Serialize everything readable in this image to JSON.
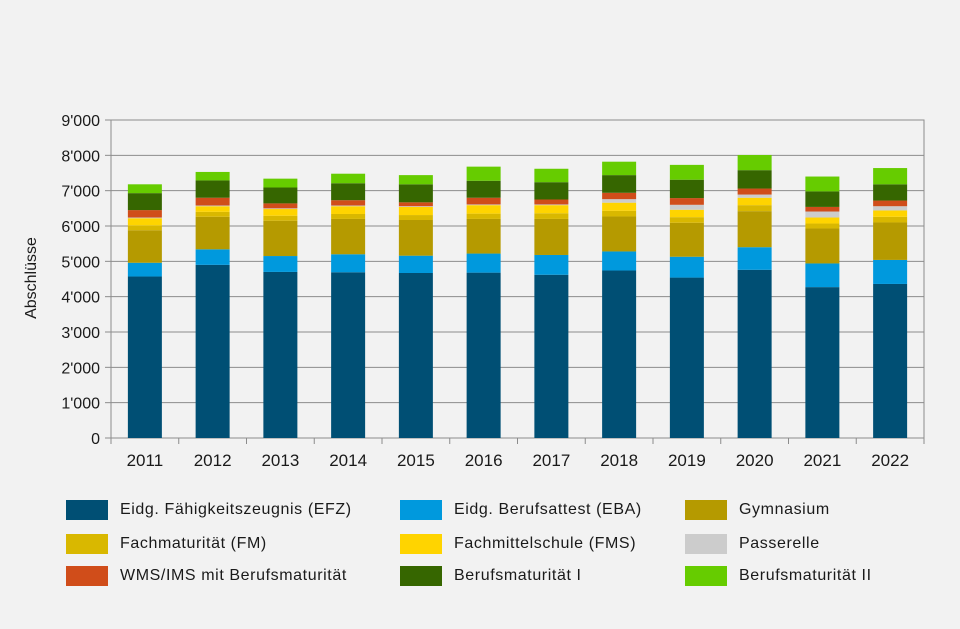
{
  "chart_data": {
    "type": "bar",
    "stacked": true,
    "title": "",
    "xlabel": "",
    "ylabel": "Abschlüsse",
    "ylim": [
      0,
      9000
    ],
    "yticks": [
      0,
      1000,
      2000,
      3000,
      4000,
      5000,
      6000,
      7000,
      8000,
      9000
    ],
    "ytick_labels": [
      "0",
      "1'000",
      "2'000",
      "3'000",
      "4'000",
      "5'000",
      "6'000",
      "7'000",
      "8'000",
      "9'000"
    ],
    "grid": true,
    "legend_position": "bottom",
    "categories": [
      "2011",
      "2012",
      "2013",
      "2014",
      "2015",
      "2016",
      "2017",
      "2018",
      "2019",
      "2020",
      "2021",
      "2022"
    ],
    "series": [
      {
        "name": "Eidg. Fähigkeitszeugnis (EFZ)",
        "color": "#004f74",
        "values": [
          4570,
          4900,
          4700,
          4690,
          4670,
          4680,
          4620,
          4740,
          4540,
          4760,
          4270,
          4360
        ]
      },
      {
        "name": "Eidg. Berufsattest (EBA)",
        "color": "#0099dd",
        "values": [
          390,
          440,
          450,
          510,
          490,
          540,
          560,
          540,
          590,
          640,
          670,
          680
        ]
      },
      {
        "name": "Gymnasium",
        "color": "#b59a00",
        "values": [
          920,
          920,
          1000,
          1000,
          1010,
          980,
          1020,
          990,
          960,
          1020,
          990,
          1060
        ]
      },
      {
        "name": "Fachmaturität (FM)",
        "color": "#d9b800",
        "values": [
          140,
          140,
          140,
          140,
          140,
          150,
          160,
          160,
          160,
          170,
          140,
          160
        ]
      },
      {
        "name": "Fachmittelschule (FMS)",
        "color": "#ffd400",
        "values": [
          200,
          160,
          190,
          220,
          230,
          240,
          230,
          230,
          210,
          210,
          170,
          180
        ]
      },
      {
        "name": "Passerelle",
        "color": "#cccccc",
        "values": [
          20,
          20,
          20,
          20,
          20,
          20,
          20,
          100,
          140,
          90,
          170,
          120
        ]
      },
      {
        "name": "WMS/IMS mit Berufsmaturität",
        "color": "#d04d1a",
        "values": [
          210,
          220,
          140,
          150,
          110,
          190,
          140,
          180,
          190,
          170,
          130,
          160
        ]
      },
      {
        "name": "Berufsmaturität I",
        "color": "#366600",
        "values": [
          480,
          490,
          450,
          480,
          510,
          480,
          490,
          500,
          520,
          520,
          440,
          460
        ]
      },
      {
        "name": "Berufsmaturität II",
        "color": "#66cc00",
        "values": [
          250,
          240,
          250,
          270,
          260,
          400,
          380,
          380,
          420,
          430,
          420,
          460
        ]
      }
    ]
  }
}
